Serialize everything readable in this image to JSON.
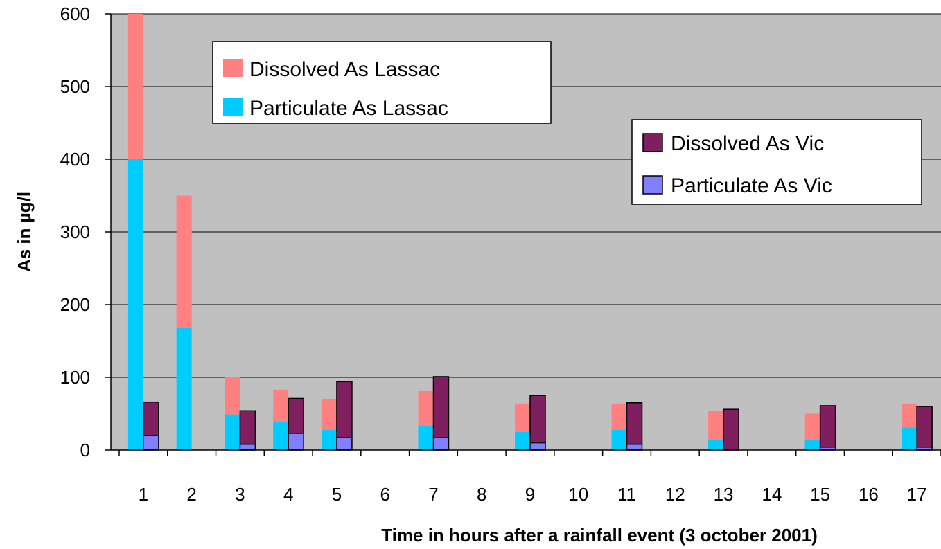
{
  "chart_data": {
    "type": "bar",
    "stacked": true,
    "categories": [
      "1",
      "2",
      "3",
      "4",
      "5",
      "6",
      "7",
      "8",
      "9",
      "10",
      "11",
      "12",
      "13",
      "14",
      "15",
      "16",
      "17"
    ],
    "xlabel": "Time in hours after a rainfall event (3 october 2001)",
    "ylabel": "As in µg/l",
    "ylim": [
      0,
      600
    ],
    "yticks": [
      0,
      100,
      200,
      300,
      400,
      500,
      600
    ],
    "grid": true,
    "groups": [
      {
        "station": "Lassac",
        "series": [
          {
            "name": "Particulate As Lassac",
            "color": "#00CCFF",
            "values": [
              400,
              168,
              49,
              39,
              28,
              null,
              33,
              null,
              25,
              null,
              28,
              null,
              14,
              null,
              14,
              null,
              31
            ]
          },
          {
            "name": "Dissolved As Lassac",
            "color": "#FF8080",
            "values": [
              200,
              182,
              51,
              44,
              42,
              null,
              48,
              null,
              39,
              null,
              36,
              null,
              40,
              null,
              36,
              null,
              33
            ]
          }
        ]
      },
      {
        "station": "Vic",
        "series": [
          {
            "name": "Particulate As Vic",
            "color": "#8080FF",
            "values": [
              20,
              null,
              8,
              23,
              17,
              null,
              17,
              null,
              10,
              null,
              8,
              null,
              0,
              null,
              4,
              null,
              4
            ]
          },
          {
            "name": "Dissolved As Vic",
            "color": "#7F1F5F",
            "values": [
              46,
              null,
              46,
              48,
              77,
              null,
              84,
              null,
              65,
              null,
              57,
              null,
              56,
              null,
              57,
              null,
              56
            ]
          }
        ]
      }
    ],
    "legends": [
      {
        "position": "top-left",
        "entries": [
          "Dissolved As Lassac",
          "Particulate As Lassac"
        ]
      },
      {
        "position": "top-right",
        "entries": [
          "Dissolved As Vic",
          "Particulate As Vic"
        ]
      }
    ],
    "plot_background": "#C0C0C0"
  }
}
